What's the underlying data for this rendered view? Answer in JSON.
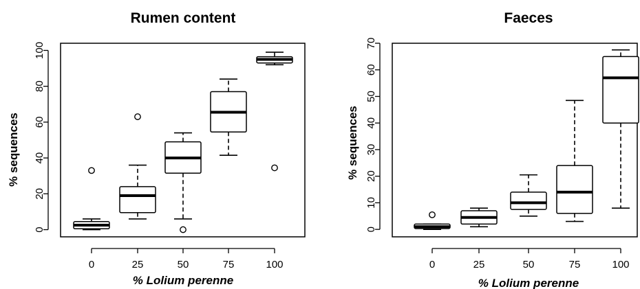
{
  "chart_data": [
    {
      "type": "box",
      "title": "Rumen content",
      "xlabel": "% Lolium perenne",
      "ylabel": "% sequences",
      "categories": [
        "0",
        "25",
        "50",
        "75",
        "100"
      ],
      "yticks": [
        0,
        20,
        40,
        60,
        80,
        100
      ],
      "ylim": [
        -4,
        104
      ],
      "boxes": [
        {
          "min": 0,
          "q1": 0.5,
          "median": 2.5,
          "q3": 4.5,
          "max": 6,
          "outliers": [
            33
          ]
        },
        {
          "min": 6,
          "q1": 9.5,
          "median": 19,
          "q3": 24,
          "max": 36,
          "outliers": [
            63
          ]
        },
        {
          "min": 6,
          "q1": 31.5,
          "median": 40,
          "q3": 49,
          "max": 54,
          "outliers": [
            0
          ]
        },
        {
          "min": 41.5,
          "q1": 54.5,
          "median": 65.5,
          "q3": 77,
          "max": 84,
          "outliers": []
        },
        {
          "min": 92,
          "q1": 93,
          "median": 95,
          "q3": 96.5,
          "max": 99,
          "outliers": [
            34.5
          ]
        }
      ]
    },
    {
      "type": "box",
      "title": "Faeces",
      "xlabel": "% Lolium perenne",
      "ylabel": "% sequences",
      "categories": [
        "0",
        "25",
        "50",
        "75",
        "100"
      ],
      "yticks": [
        0,
        10,
        20,
        30,
        40,
        50,
        60,
        70
      ],
      "ylim": [
        -2.8,
        70
      ],
      "boxes": [
        {
          "min": 0,
          "q1": 0.3,
          "median": 1,
          "q3": 2,
          "max": 2,
          "outliers": [
            5.5
          ]
        },
        {
          "min": 1,
          "q1": 2,
          "median": 4.5,
          "q3": 7,
          "max": 8,
          "outliers": []
        },
        {
          "min": 5,
          "q1": 7.5,
          "median": 10,
          "q3": 14,
          "max": 20.5,
          "outliers": []
        },
        {
          "min": 3,
          "q1": 6,
          "median": 14,
          "q3": 24,
          "max": 48.5,
          "outliers": []
        },
        {
          "min": 8,
          "q1": 40,
          "median": 57,
          "q3": 65,
          "max": 67.5,
          "outliers": []
        }
      ]
    }
  ]
}
